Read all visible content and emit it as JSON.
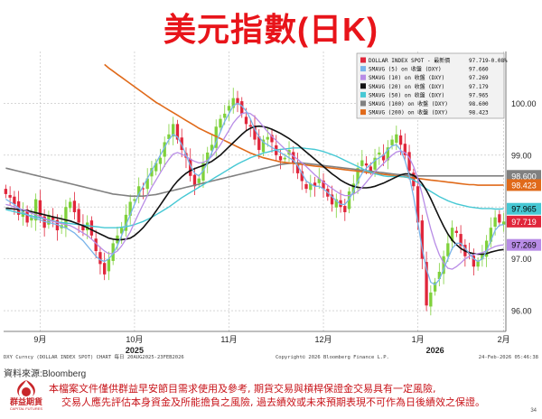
{
  "title": "美元指數(日K)",
  "source": "資料來源:Bloomberg",
  "logo": {
    "text": "群益期貨",
    "sub": "CAPITAL FUTURES"
  },
  "disclaimer": {
    "line1": "本檔案文件僅供群益早安節目需求使用及參考, 期貨交易與槓桿保證金交易具有一定風險,",
    "line2": "交易人應先評估本身資金及所能擔負之風險, 過去績效或未來預期表現不可作為日後績效之保證。"
  },
  "page_number": "34",
  "chart_footer": {
    "left": "DXY Curncy (DOLLAR INDEX SPOT) CHART 每日 20AUG2025-23FEB2026",
    "center": "Copyright© 2026 Bloomberg Finance L.P.",
    "right": "24-Feb-2026 05:46:38"
  },
  "colors": {
    "up_candle": "#7fd13b",
    "down_candle": "#e0263b",
    "sma5": "#7ab4ea",
    "sma10": "#b88ce6",
    "sma20": "#111111",
    "sma50": "#46c8d4",
    "sma100": "#808080",
    "sma200": "#e06a1a"
  },
  "chart_data": {
    "type": "candlestick",
    "ylim": [
      95.6,
      101.0
    ],
    "y_ticks": [
      96.0,
      97.0,
      98.0,
      99.0,
      100.0
    ],
    "x_month_labels": [
      "9月",
      "10月",
      "11月",
      "12月",
      "1月",
      "2月"
    ],
    "x_month_index": [
      8,
      30,
      52,
      74,
      96,
      116
    ],
    "x_year_labels": [
      "2025",
      "2026"
    ],
    "x_year_index": [
      30,
      100
    ],
    "legend": [
      {
        "label": "DOLLAR INDEX SPOT - 最新價",
        "value": "97.719",
        "change": "-0.08%",
        "color_key": "down_candle"
      },
      {
        "label": "SMAVG (5)  on 收盤 (DXY)",
        "value": "97.660",
        "color_key": "sma5"
      },
      {
        "label": "SMAVG (10)  on 收盤 (DXY)",
        "value": "97.269",
        "color_key": "sma10"
      },
      {
        "label": "SMAVG (20)  on 收盤 (DXY)",
        "value": "97.179",
        "color_key": "sma20"
      },
      {
        "label": "SMAVG (50)  on 收盤 (DXY)",
        "value": "97.965",
        "color_key": "sma50"
      },
      {
        "label": "SMAVG (100)  on 收盤 (DXY)",
        "value": "98.600",
        "color_key": "sma100"
      },
      {
        "label": "SMAVG (200)  on 收盤 (DXY)",
        "value": "98.423",
        "color_key": "sma200"
      }
    ],
    "right_tags": [
      {
        "value": "98.600",
        "color_key": "sma100",
        "text_color": "#ffffff"
      },
      {
        "value": "98.423",
        "color_key": "sma200",
        "text_color": "#ffffff"
      },
      {
        "value": "97.965",
        "color_key": "sma50",
        "text_color": "#000000"
      },
      {
        "value": "97.719",
        "color_key": "down_candle",
        "text_color": "#ffffff"
      },
      {
        "value": "97.269",
        "color_key": "sma10",
        "text_color": "#000000"
      }
    ],
    "close": [
      98.25,
      98.18,
      98.05,
      97.85,
      97.95,
      97.7,
      97.8,
      98.15,
      97.8,
      97.6,
      97.85,
      97.75,
      97.55,
      97.65,
      98.0,
      98.1,
      97.9,
      97.7,
      97.55,
      97.7,
      97.45,
      97.15,
      96.9,
      96.7,
      97.0,
      97.3,
      97.45,
      97.6,
      97.85,
      98.1,
      98.15,
      98.4,
      98.35,
      98.55,
      98.75,
      98.85,
      98.95,
      99.25,
      99.4,
      99.6,
      99.3,
      99.1,
      98.95,
      98.6,
      98.4,
      98.55,
      98.85,
      99.05,
      99.2,
      99.55,
      99.7,
      99.8,
      99.95,
      100.1,
      100.0,
      99.8,
      99.6,
      99.55,
      99.3,
      99.1,
      99.3,
      99.35,
      99.25,
      99.0,
      98.9,
      98.95,
      99.1,
      98.85,
      98.65,
      98.5,
      98.35,
      98.45,
      98.4,
      98.55,
      98.35,
      98.2,
      98.05,
      98.15,
      98.0,
      97.9,
      98.3,
      98.45,
      98.75,
      98.9,
      98.8,
      98.7,
      98.95,
      99.05,
      98.9,
      99.15,
      99.3,
      99.4,
      99.2,
      99.0,
      98.7,
      98.4,
      97.7,
      97.0,
      96.1,
      96.35,
      96.55,
      96.75,
      97.05,
      97.3,
      97.6,
      97.5,
      97.25,
      97.05,
      97.1,
      96.85,
      96.95,
      97.1,
      97.35,
      97.6,
      97.8,
      97.7,
      97.72
    ],
    "sma5": [
      98.15,
      98.1,
      98.05,
      97.98,
      97.9,
      97.85,
      97.8,
      97.78,
      97.75,
      97.72,
      97.7,
      97.68,
      97.66,
      97.62,
      97.6,
      97.55,
      97.5,
      97.42,
      97.35,
      97.25,
      97.15,
      97.05,
      96.98,
      96.95,
      97.0,
      97.1,
      97.25,
      97.45,
      97.65,
      97.85,
      98.05,
      98.25,
      98.4,
      98.55,
      98.7,
      98.85,
      99.0,
      99.15,
      99.3,
      99.4,
      99.35,
      99.2,
      99.0,
      98.8,
      98.65,
      98.6,
      98.7,
      98.85,
      99.05,
      99.25,
      99.45,
      99.65,
      99.8,
      99.95,
      100.0,
      99.95,
      99.85,
      99.7,
      99.5,
      99.35,
      99.25,
      99.2,
      99.15,
      99.1,
      99.05,
      99.0,
      98.95,
      98.9,
      98.8,
      98.65,
      98.5,
      98.45,
      98.4,
      98.4,
      98.35,
      98.28,
      98.2,
      98.12,
      98.05,
      98.05,
      98.15,
      98.3,
      98.5,
      98.65,
      98.75,
      98.82,
      98.9,
      98.95,
      99.0,
      99.1,
      99.18,
      99.2,
      99.1,
      98.9,
      98.6,
      98.2,
      97.7,
      97.2,
      96.8,
      96.55,
      96.5,
      96.6,
      96.8,
      97.0,
      97.2,
      97.3,
      97.3,
      97.2,
      97.1,
      97.0,
      96.95,
      97.0,
      97.15,
      97.35,
      97.55,
      97.65,
      97.66
    ],
    "sma10": [
      98.05,
      98.03,
      98.0,
      97.97,
      97.95,
      97.92,
      97.88,
      97.85,
      97.82,
      97.78,
      97.74,
      97.72,
      97.7,
      97.68,
      97.66,
      97.64,
      97.6,
      97.55,
      97.5,
      97.45,
      97.38,
      97.3,
      97.22,
      97.15,
      97.1,
      97.1,
      97.15,
      97.25,
      97.38,
      97.52,
      97.7,
      97.88,
      98.05,
      98.22,
      98.38,
      98.52,
      98.66,
      98.8,
      98.92,
      99.02,
      99.05,
      99.02,
      98.98,
      98.92,
      98.88,
      98.85,
      98.86,
      98.9,
      98.98,
      99.08,
      99.2,
      99.34,
      99.48,
      99.62,
      99.72,
      99.8,
      99.82,
      99.8,
      99.74,
      99.65,
      99.55,
      99.45,
      99.36,
      99.28,
      99.2,
      99.12,
      99.05,
      98.98,
      98.92,
      98.85,
      98.78,
      98.7,
      98.62,
      98.55,
      98.48,
      98.42,
      98.36,
      98.3,
      98.25,
      98.22,
      98.22,
      98.25,
      98.3,
      98.38,
      98.48,
      98.58,
      98.68,
      98.76,
      98.84,
      98.92,
      99.0,
      99.06,
      99.08,
      99.05,
      98.95,
      98.78,
      98.55,
      98.25,
      97.9,
      97.58,
      97.3,
      97.08,
      96.92,
      96.82,
      96.8,
      96.85,
      96.92,
      97.0,
      97.05,
      97.08,
      97.1,
      97.12,
      97.15,
      97.2,
      97.24,
      97.26,
      97.27
    ],
    "sma20": [
      97.98,
      97.97,
      97.96,
      97.95,
      97.94,
      97.93,
      97.91,
      97.89,
      97.87,
      97.85,
      97.83,
      97.81,
      97.79,
      97.77,
      97.75,
      97.73,
      97.7,
      97.67,
      97.64,
      97.6,
      97.56,
      97.52,
      97.48,
      97.44,
      97.4,
      97.38,
      97.37,
      97.37,
      97.38,
      97.4,
      97.45,
      97.52,
      97.6,
      97.7,
      97.8,
      97.92,
      98.04,
      98.16,
      98.28,
      98.4,
      98.5,
      98.58,
      98.65,
      98.7,
      98.74,
      98.77,
      98.8,
      98.84,
      98.88,
      98.94,
      99.0,
      99.08,
      99.16,
      99.24,
      99.32,
      99.4,
      99.47,
      99.52,
      99.55,
      99.56,
      99.55,
      99.53,
      99.5,
      99.46,
      99.42,
      99.37,
      99.32,
      99.26,
      99.2,
      99.13,
      99.06,
      98.99,
      98.92,
      98.85,
      98.78,
      98.71,
      98.64,
      98.58,
      98.52,
      98.47,
      98.43,
      98.4,
      98.38,
      98.37,
      98.37,
      98.38,
      98.4,
      98.43,
      98.46,
      98.5,
      98.54,
      98.58,
      98.62,
      98.64,
      98.64,
      98.61,
      98.55,
      98.45,
      98.32,
      98.16,
      97.98,
      97.8,
      97.63,
      97.48,
      97.36,
      97.27,
      97.2,
      97.15,
      97.12,
      97.1,
      97.09,
      97.09,
      97.1,
      97.13,
      97.15,
      97.17,
      97.18
    ],
    "sma50": [
      97.95,
      97.93,
      97.91,
      97.89,
      97.87,
      97.85,
      97.83,
      97.81,
      97.79,
      97.77,
      97.75,
      97.73,
      97.71,
      97.7,
      97.69,
      97.68,
      97.67,
      97.66,
      97.65,
      97.64,
      97.63,
      97.62,
      97.61,
      97.6,
      97.6,
      97.6,
      97.6,
      97.61,
      97.62,
      97.64,
      97.66,
      97.69,
      97.72,
      97.76,
      97.8,
      97.85,
      97.9,
      97.95,
      98.0,
      98.06,
      98.12,
      98.18,
      98.23,
      98.28,
      98.33,
      98.38,
      98.43,
      98.48,
      98.53,
      98.58,
      98.63,
      98.68,
      98.73,
      98.78,
      98.83,
      98.87,
      98.91,
      98.95,
      98.98,
      99.01,
      99.04,
      99.06,
      99.08,
      99.1,
      99.11,
      99.12,
      99.13,
      99.14,
      99.14,
      99.14,
      99.13,
      99.12,
      99.11,
      99.09,
      99.07,
      99.04,
      99.01,
      98.98,
      98.94,
      98.9,
      98.86,
      98.82,
      98.78,
      98.74,
      98.7,
      98.67,
      98.64,
      98.62,
      98.6,
      98.59,
      98.59,
      98.59,
      98.59,
      98.58,
      98.56,
      98.52,
      98.47,
      98.41,
      98.35,
      98.3,
      98.25,
      98.2,
      98.16,
      98.12,
      98.09,
      98.06,
      98.04,
      98.02,
      98.0,
      97.99,
      97.98,
      97.97,
      97.97,
      97.97,
      97.96,
      97.96,
      97.965
    ],
    "sma100": [
      98.75,
      98.73,
      98.71,
      98.69,
      98.67,
      98.65,
      98.63,
      98.61,
      98.59,
      98.57,
      98.55,
      98.53,
      98.51,
      98.49,
      98.47,
      98.45,
      98.43,
      98.41,
      98.39,
      98.37,
      98.35,
      98.33,
      98.31,
      98.29,
      98.27,
      98.25,
      98.24,
      98.23,
      98.22,
      98.21,
      98.21,
      98.21,
      98.21,
      98.22,
      98.23,
      98.24,
      98.26,
      98.28,
      98.3,
      98.32,
      98.34,
      98.36,
      98.38,
      98.4,
      98.42,
      98.44,
      98.46,
      98.48,
      98.5,
      98.52,
      98.54,
      98.56,
      98.58,
      98.6,
      98.62,
      98.64,
      98.66,
      98.68,
      98.7,
      98.72,
      98.74,
      98.76,
      98.78,
      98.8,
      98.82,
      98.83,
      98.84,
      98.85,
      98.85,
      98.85,
      98.84,
      98.83,
      98.82,
      98.81,
      98.8,
      98.79,
      98.78,
      98.77,
      98.76,
      98.75,
      98.74,
      98.73,
      98.72,
      98.71,
      98.7,
      98.69,
      98.68,
      98.67,
      98.66,
      98.65,
      98.64,
      98.63,
      98.62,
      98.61,
      98.6,
      98.6,
      98.6,
      98.6,
      98.6,
      98.6,
      98.6,
      98.6,
      98.6,
      98.6,
      98.6,
      98.6,
      98.6,
      98.6,
      98.6,
      98.6,
      98.6,
      98.6,
      98.6,
      98.6,
      98.6,
      98.6,
      98.6
    ],
    "sma200": [
      null,
      null,
      null,
      null,
      null,
      null,
      null,
      null,
      null,
      null,
      null,
      null,
      null,
      null,
      null,
      null,
      null,
      null,
      null,
      null,
      null,
      null,
      null,
      100.75,
      100.68,
      100.62,
      100.56,
      100.5,
      100.44,
      100.38,
      100.32,
      100.26,
      100.2,
      100.14,
      100.08,
      100.02,
      99.97,
      99.92,
      99.87,
      99.82,
      99.77,
      99.72,
      99.67,
      99.62,
      99.57,
      99.52,
      99.48,
      99.44,
      99.4,
      99.36,
      99.32,
      99.28,
      99.24,
      99.2,
      99.16,
      99.12,
      99.08,
      99.04,
      99.01,
      98.98,
      98.95,
      98.93,
      98.91,
      98.89,
      98.87,
      98.86,
      98.85,
      98.84,
      98.83,
      98.82,
      98.81,
      98.8,
      98.79,
      98.78,
      98.77,
      98.76,
      98.75,
      98.74,
      98.73,
      98.72,
      98.71,
      98.7,
      98.69,
      98.68,
      98.67,
      98.66,
      98.65,
      98.64,
      98.63,
      98.62,
      98.61,
      98.6,
      98.59,
      98.58,
      98.57,
      98.56,
      98.55,
      98.54,
      98.53,
      98.52,
      98.51,
      98.5,
      98.49,
      98.48,
      98.47,
      98.46,
      98.45,
      98.44,
      98.43,
      98.43,
      98.42,
      98.42,
      98.42,
      98.42,
      98.42,
      98.42,
      98.423
    ]
  }
}
